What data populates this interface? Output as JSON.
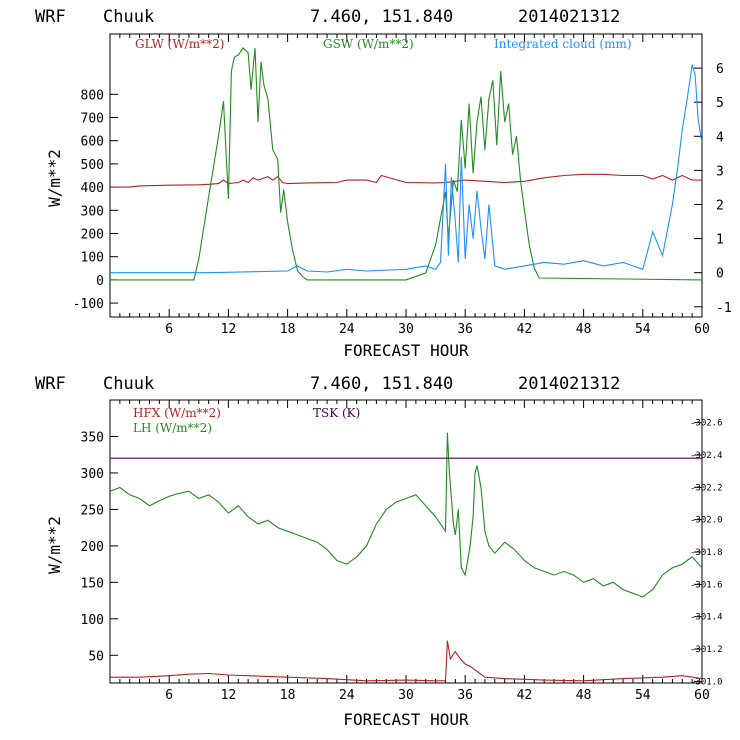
{
  "chart_data": [
    {
      "type": "line",
      "header": {
        "model": "WRF",
        "station": "Chuuk",
        "coords": "7.460, 151.840",
        "run": "2014021312"
      },
      "xlabel": "FORECAST HOUR",
      "ylabel": "W/m**2",
      "xlim": [
        0,
        60
      ],
      "ylim": [
        -160,
        1060
      ],
      "y2lim": [
        -1.3,
        7
      ],
      "xticks": [
        6,
        12,
        18,
        24,
        30,
        36,
        42,
        48,
        54,
        60
      ],
      "yticks": [
        -100,
        0,
        100,
        200,
        300,
        400,
        500,
        600,
        700,
        800
      ],
      "y2ticks": [
        -1,
        0,
        1,
        2,
        3,
        4,
        5,
        6
      ],
      "legend": [
        {
          "label": "GLW (W/m**2)",
          "color": "#b22222"
        },
        {
          "label": "GSW (W/m**2)",
          "color": "#228b22"
        },
        {
          "label": "Integrated cloud (mm)",
          "color": "#1e90ff"
        }
      ],
      "series": [
        {
          "name": "GLW",
          "axis": "left",
          "color": "#b22222",
          "x": [
            0,
            2,
            3,
            6,
            9,
            10,
            11,
            11.5,
            12,
            13,
            13.5,
            14,
            14.5,
            15,
            16,
            16.5,
            17,
            17.5,
            18,
            20,
            23,
            24,
            26,
            27,
            27.5,
            30,
            33,
            34,
            36,
            38,
            40,
            42,
            44,
            46,
            48,
            50,
            52,
            54,
            55,
            56,
            57,
            58,
            59,
            60
          ],
          "y": [
            400,
            400,
            405,
            408,
            410,
            412,
            415,
            430,
            415,
            420,
            430,
            420,
            440,
            430,
            445,
            430,
            445,
            420,
            415,
            418,
            420,
            430,
            430,
            420,
            450,
            420,
            418,
            420,
            430,
            425,
            420,
            425,
            440,
            450,
            455,
            455,
            450,
            450,
            435,
            450,
            430,
            450,
            430,
            430
          ]
        },
        {
          "name": "GSW",
          "axis": "left",
          "color": "#228b22",
          "x": [
            0,
            8.5,
            9,
            10,
            11,
            11.5,
            12,
            12.3,
            12.6,
            13,
            13.5,
            14,
            14.3,
            14.7,
            15,
            15.3,
            15.6,
            16,
            16.5,
            17,
            17.3,
            17.6,
            18,
            18.5,
            19,
            19.5,
            20,
            30,
            32,
            33,
            34,
            34.3,
            34.8,
            35.2,
            35.6,
            36,
            36.4,
            36.8,
            37.2,
            37.6,
            38,
            38.4,
            38.8,
            39.2,
            39.6,
            40,
            40.4,
            40.8,
            41.2,
            41.6,
            42,
            42.5,
            43,
            43.5,
            60
          ],
          "y": [
            0,
            0,
            90,
            360,
            620,
            770,
            350,
            900,
            960,
            970,
            1000,
            980,
            820,
            1000,
            680,
            940,
            840,
            780,
            560,
            520,
            290,
            390,
            250,
            130,
            40,
            15,
            0,
            0,
            30,
            150,
            380,
            180,
            430,
            380,
            690,
            480,
            760,
            460,
            680,
            790,
            560,
            780,
            860,
            580,
            900,
            680,
            760,
            540,
            620,
            430,
            300,
            150,
            50,
            8,
            0
          ]
        },
        {
          "name": "Integrated cloud",
          "axis": "right",
          "color": "#1e90ff",
          "x": [
            0,
            10,
            18,
            19,
            20,
            22,
            24,
            26,
            30,
            32,
            33,
            33.5,
            34,
            34.3,
            34.6,
            35,
            35.3,
            35.6,
            36,
            36.4,
            36.8,
            37.2,
            37.6,
            38,
            38.4,
            39,
            40,
            42,
            44,
            46,
            48,
            50,
            52,
            53,
            54,
            55,
            56,
            57,
            57.5,
            58,
            58.5,
            59,
            59.3,
            59.6,
            60
          ],
          "y": [
            0,
            0,
            0.05,
            0.2,
            0.05,
            0.02,
            0.1,
            0.05,
            0.1,
            0.2,
            0.1,
            0.3,
            3.2,
            0.5,
            2.8,
            1.5,
            0.3,
            3.4,
            0.4,
            2.0,
            1.0,
            2.4,
            1.3,
            0.4,
            2.0,
            0.2,
            0.1,
            0.2,
            0.3,
            0.25,
            0.35,
            0.2,
            0.3,
            0.2,
            0.1,
            1.2,
            0.5,
            2.0,
            3.0,
            4.2,
            5.1,
            6.1,
            5.8,
            4.5,
            3.8
          ]
        }
      ]
    },
    {
      "type": "line",
      "header": {
        "model": "WRF",
        "station": "Chuuk",
        "coords": "7.460, 151.840",
        "run": "2014021312"
      },
      "xlabel": "FORECAST HOUR",
      "ylabel": "W/m**2",
      "xlim": [
        0,
        60
      ],
      "ylim": [
        12,
        400
      ],
      "y2lim": [
        300.99,
        302.74
      ],
      "xticks": [
        6,
        12,
        18,
        24,
        30,
        36,
        42,
        48,
        54,
        60
      ],
      "yticks": [
        50,
        100,
        150,
        200,
        250,
        300,
        350
      ],
      "y2ticks": [
        "301.0",
        "301.2",
        "301.4",
        "301.6",
        "301.8",
        "302.0",
        "302.2",
        "302.4",
        "302.6"
      ],
      "legend": [
        {
          "label": "HFX (W/m**2)",
          "color": "#b22222"
        },
        {
          "label": "LH  (W/m**2)",
          "color": "#228b22"
        },
        {
          "label": "TSK (K)",
          "color": "#4b0057"
        }
      ],
      "series": [
        {
          "name": "HFX",
          "axis": "left",
          "color": "#b22222",
          "x": [
            0,
            3,
            6,
            8,
            10,
            12,
            14,
            18,
            22,
            26,
            30,
            33,
            34,
            34.2,
            34.5,
            35,
            35.5,
            36,
            36.5,
            37,
            38,
            40,
            44,
            48,
            52,
            56,
            58,
            60
          ],
          "y": [
            20,
            20,
            22,
            24,
            25,
            23,
            22,
            20,
            18,
            15,
            16,
            15,
            15,
            70,
            45,
            55,
            45,
            38,
            35,
            30,
            20,
            18,
            16,
            15,
            18,
            20,
            22,
            18
          ]
        },
        {
          "name": "LH",
          "axis": "left",
          "color": "#228b22",
          "x": [
            0,
            1,
            2,
            3,
            4,
            5,
            6,
            7,
            8,
            9,
            10,
            11,
            12,
            13,
            14,
            15,
            16,
            17,
            18,
            19,
            20,
            21,
            22,
            23,
            24,
            25,
            26,
            27,
            28,
            29,
            30,
            31,
            32,
            33,
            34,
            34.2,
            34.4,
            34.8,
            35,
            35.3,
            35.6,
            36,
            36.5,
            36.8,
            37,
            37.2,
            37.6,
            38,
            38.4,
            39,
            40,
            41,
            42,
            43,
            44,
            45,
            46,
            47,
            48,
            49,
            50,
            51,
            52,
            53,
            54,
            55,
            56,
            57,
            58,
            59,
            60
          ],
          "y": [
            275,
            280,
            270,
            265,
            255,
            262,
            268,
            272,
            275,
            265,
            270,
            260,
            245,
            255,
            240,
            230,
            235,
            225,
            220,
            215,
            210,
            205,
            195,
            180,
            175,
            185,
            200,
            230,
            250,
            260,
            265,
            270,
            255,
            240,
            220,
            355,
            300,
            230,
            215,
            250,
            170,
            160,
            200,
            240,
            300,
            310,
            280,
            220,
            200,
            190,
            205,
            195,
            180,
            170,
            165,
            160,
            165,
            160,
            150,
            155,
            145,
            150,
            140,
            135,
            130,
            140,
            160,
            170,
            175,
            185,
            170
          ]
        },
        {
          "name": "TSK",
          "axis": "right",
          "color": "#4b0057",
          "x": [
            0,
            60
          ],
          "y": [
            302.38,
            302.38
          ]
        }
      ]
    }
  ]
}
